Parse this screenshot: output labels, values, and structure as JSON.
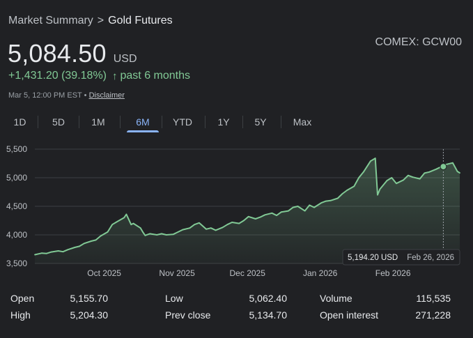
{
  "breadcrumb": {
    "parent": "Market Summary",
    "separator": ">",
    "current": "Gold Futures"
  },
  "ticker": "COMEX: GCW00",
  "price": {
    "value": "5,084.50",
    "currency": "USD"
  },
  "change": {
    "text": "+1,431.20 (39.18%)",
    "arrow": "↑",
    "period": "past 6 months"
  },
  "meta": {
    "timestamp": "Mar 5, 12:00 PM EST",
    "dot": "•",
    "disclaimer": "Disclaimer"
  },
  "tabs": [
    {
      "label": "1D",
      "active": false
    },
    {
      "label": "5D",
      "active": false
    },
    {
      "label": "1M",
      "active": false
    },
    {
      "label": "6M",
      "active": true
    },
    {
      "label": "YTD",
      "active": false
    },
    {
      "label": "1Y",
      "active": false
    },
    {
      "label": "5Y",
      "active": false
    },
    {
      "label": "Max",
      "active": false
    }
  ],
  "colors": {
    "line": "#81c995",
    "accent": "#8ab4f8",
    "gridline": "#3c4043",
    "background": "#202124"
  },
  "tooltip": {
    "price": "5,194.20 USD",
    "date": "Feb 26, 2026"
  },
  "chart_data": {
    "type": "area",
    "title": "",
    "xlabel": "",
    "ylabel": "",
    "ylim": [
      3500,
      5500
    ],
    "y_ticks": [
      "3,500",
      "4,000",
      "4,500",
      "5,000",
      "5,500"
    ],
    "y_tick_values": [
      3500,
      4000,
      4500,
      5000,
      5500
    ],
    "x_tick_labels": [
      "Oct 2025",
      "Nov 2025",
      "Dec 2025",
      "Jan 2026",
      "Feb 2026"
    ],
    "x_tick_dates": [
      "2025-10-01",
      "2025-11-01",
      "2025-12-01",
      "2026-01-01",
      "2026-02-01"
    ],
    "x_range": [
      "2025-09-05",
      "2026-03-05"
    ],
    "grid": true,
    "series": [
      {
        "x": [
          "2025-09-05",
          "2025-09-08",
          "2025-09-10",
          "2025-09-12",
          "2025-09-15",
          "2025-09-17",
          "2025-09-19",
          "2025-09-22",
          "2025-09-24",
          "2025-09-26",
          "2025-09-29",
          "2025-10-01",
          "2025-10-03",
          "2025-10-06",
          "2025-10-08",
          "2025-10-10",
          "2025-10-13",
          "2025-10-14",
          "2025-10-16",
          "2025-10-17",
          "2025-10-20",
          "2025-10-21",
          "2025-10-22",
          "2025-10-24",
          "2025-10-27",
          "2025-10-29",
          "2025-10-31",
          "2025-11-03",
          "2025-11-05",
          "2025-11-07",
          "2025-11-10",
          "2025-11-12",
          "2025-11-14",
          "2025-11-17",
          "2025-11-19",
          "2025-11-21",
          "2025-11-24",
          "2025-11-26",
          "2025-11-28",
          "2025-12-01",
          "2025-12-03",
          "2025-12-05",
          "2025-12-08",
          "2025-12-10",
          "2025-12-12",
          "2025-12-15",
          "2025-12-17",
          "2025-12-19",
          "2025-12-22",
          "2025-12-24",
          "2025-12-26",
          "2025-12-29",
          "2025-12-31",
          "2026-01-02",
          "2026-01-05",
          "2026-01-07",
          "2026-01-09",
          "2026-01-12",
          "2026-01-14",
          "2026-01-16",
          "2026-01-19",
          "2026-01-21",
          "2026-01-23",
          "2026-01-26",
          "2026-01-28",
          "2026-01-29",
          "2026-01-30",
          "2026-02-02",
          "2026-02-04",
          "2026-02-06",
          "2026-02-09",
          "2026-02-11",
          "2026-02-13",
          "2026-02-16",
          "2026-02-18",
          "2026-02-20",
          "2026-02-23",
          "2026-02-25",
          "2026-02-26",
          "2026-02-27",
          "2026-03-02",
          "2026-03-04",
          "2026-03-05"
        ],
        "y": [
          3653,
          3680,
          3675,
          3700,
          3720,
          3705,
          3740,
          3780,
          3800,
          3850,
          3890,
          3910,
          3980,
          4050,
          4180,
          4230,
          4300,
          4360,
          4180,
          4200,
          4120,
          4050,
          3990,
          4020,
          4000,
          4020,
          4000,
          4010,
          4050,
          4090,
          4120,
          4180,
          4210,
          4100,
          4120,
          4080,
          4130,
          4180,
          4220,
          4200,
          4250,
          4320,
          4280,
          4310,
          4350,
          4380,
          4340,
          4400,
          4420,
          4480,
          4500,
          4420,
          4520,
          4480,
          4560,
          4590,
          4600,
          4640,
          4720,
          4780,
          4850,
          5000,
          5100,
          5290,
          5340,
          4700,
          4800,
          4950,
          5000,
          4900,
          4960,
          5040,
          5010,
          4980,
          5080,
          5100,
          5150,
          5190,
          5194,
          5230,
          5260,
          5110,
          5084
        ]
      }
    ]
  },
  "stats": [
    {
      "label": "Open",
      "value": "5,155.70"
    },
    {
      "label": "High",
      "value": "5,204.30"
    },
    {
      "label": "Low",
      "value": "5,062.40"
    },
    {
      "label": "Prev close",
      "value": "5,134.70"
    },
    {
      "label": "Volume",
      "value": "115,535"
    },
    {
      "label": "Open interest",
      "value": "271,228"
    }
  ]
}
